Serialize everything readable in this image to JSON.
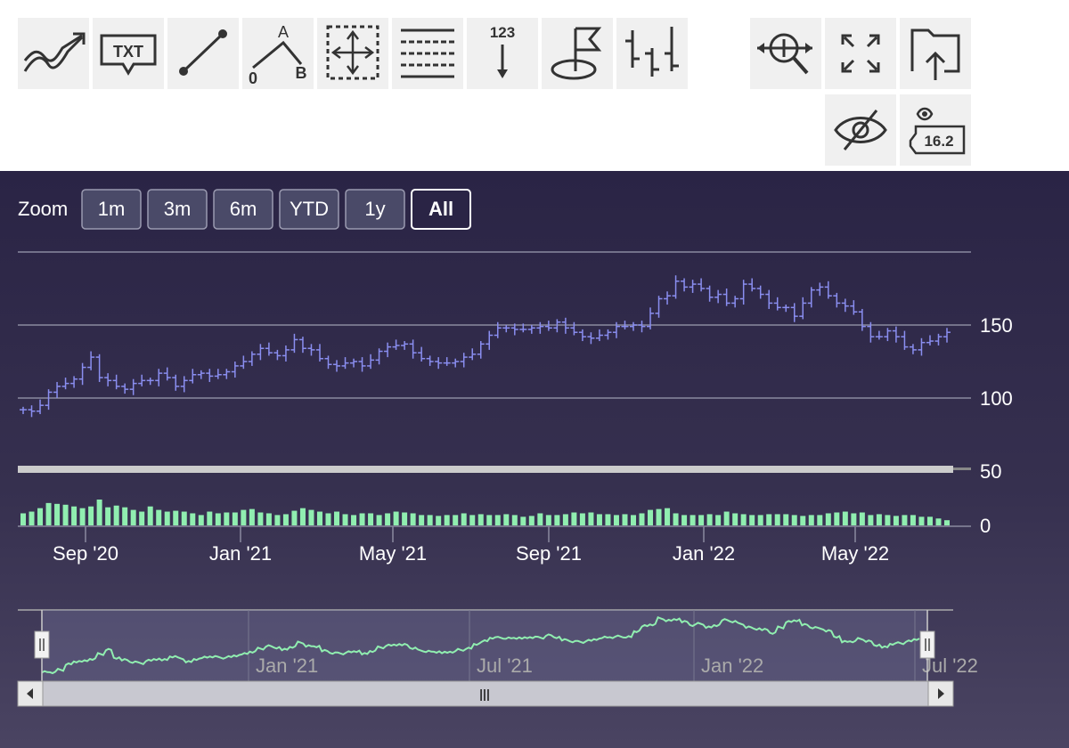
{
  "toolbar": {
    "tools": [
      {
        "id": "indicators",
        "icon": "indicators-icon"
      },
      {
        "id": "text",
        "icon": "text-annotation-icon",
        "label": "TXT"
      },
      {
        "id": "line",
        "icon": "line-segment-icon"
      },
      {
        "id": "elliott",
        "icon": "elliott-wave-icon",
        "labels": [
          "A",
          "0",
          "B"
        ]
      },
      {
        "id": "measure",
        "icon": "measure-xy-icon"
      },
      {
        "id": "fibonacci",
        "icon": "fibonacci-icon"
      },
      {
        "id": "vertical-counter",
        "icon": "vertical-counter-icon",
        "label": "123"
      },
      {
        "id": "flag",
        "icon": "flag-icon"
      },
      {
        "id": "type-change",
        "icon": "type-change-icon"
      },
      {
        "id": "zoom-change",
        "icon": "zoom-change-icon"
      },
      {
        "id": "fullscreen",
        "icon": "fullscreen-icon"
      },
      {
        "id": "save-chart",
        "icon": "save-chart-icon"
      },
      {
        "id": "toggle-annotations",
        "icon": "hide-annotations-icon"
      },
      {
        "id": "current-price",
        "icon": "current-price-indicator-icon",
        "label": "16.2"
      }
    ]
  },
  "range_selector": {
    "label": "Zoom",
    "buttons": [
      "1m",
      "3m",
      "6m",
      "YTD",
      "1y",
      "All"
    ],
    "selected": "All"
  },
  "colors": {
    "ohlc": "#8a8ef0",
    "volume": "#90eeb0",
    "navigator_line": "#90eeb0",
    "axis_text": "#ffffff",
    "grid": "#8a8aa0"
  },
  "chart_data": {
    "type": "ohlc",
    "y_axis": {
      "ticks": [
        150,
        100,
        50,
        0
      ],
      "range": [
        50,
        200
      ]
    },
    "volume_axis": {
      "range": [
        0,
        60
      ]
    },
    "x_axis": {
      "ticks": [
        "Sep '20",
        "Jan '21",
        "May '21",
        "Sep '21",
        "Jan '22",
        "May '22"
      ]
    },
    "navigator_axis": {
      "ticks": [
        "Jan '21",
        "Jul '21",
        "Jan '22",
        "Jul '22"
      ]
    },
    "close": [
      92,
      91,
      95,
      104,
      108,
      110,
      113,
      121,
      128,
      114,
      112,
      108,
      106,
      110,
      112,
      112,
      117,
      114,
      108,
      112,
      116,
      117,
      115,
      116,
      118,
      122,
      125,
      130,
      134,
      131,
      129,
      133,
      140,
      134,
      133,
      127,
      123,
      122,
      124,
      125,
      122,
      126,
      132,
      135,
      136,
      137,
      131,
      127,
      125,
      124,
      124,
      125,
      128,
      130,
      137,
      143,
      148,
      148,
      147,
      147,
      148,
      149,
      148,
      152,
      148,
      145,
      142,
      141,
      143,
      145,
      149,
      149,
      150,
      149,
      158,
      168,
      170,
      180,
      176,
      178,
      175,
      169,
      171,
      165,
      168,
      178,
      175,
      171,
      165,
      162,
      162,
      156,
      165,
      174,
      176,
      170,
      165,
      163,
      159,
      149,
      142,
      142,
      146,
      142,
      135,
      133,
      138,
      139,
      142,
      145
    ],
    "volume": [
      14,
      16,
      20,
      26,
      25,
      24,
      22,
      20,
      22,
      30,
      21,
      23,
      21,
      18,
      16,
      22,
      18,
      16,
      17,
      16,
      14,
      12,
      16,
      14,
      15,
      15,
      18,
      19,
      15,
      14,
      12,
      13,
      17,
      20,
      18,
      16,
      14,
      16,
      13,
      12,
      14,
      14,
      12,
      14,
      16,
      15,
      14,
      12,
      12,
      11,
      12,
      12,
      14,
      12,
      13,
      12,
      12,
      13,
      12,
      10,
      11,
      14,
      12,
      12,
      13,
      15,
      14,
      15,
      13,
      13,
      12,
      13,
      12,
      14,
      18,
      19,
      20,
      14,
      12,
      12,
      12,
      13,
      12,
      16,
      14,
      13,
      12,
      12,
      13,
      13,
      13,
      12,
      11,
      12,
      12,
      14,
      15,
      16,
      14,
      15,
      12,
      13,
      12,
      11,
      12,
      12,
      10,
      10,
      8,
      6
    ],
    "navigator_range": [
      "start",
      "end"
    ]
  },
  "scrollbar": {
    "grip": "|||"
  }
}
